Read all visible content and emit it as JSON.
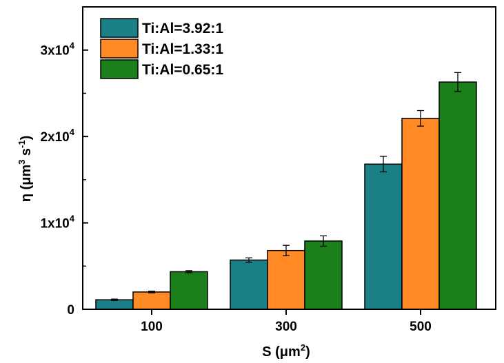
{
  "chart_data": {
    "type": "bar",
    "categories": [
      "100",
      "300",
      "500"
    ],
    "series": [
      {
        "name": "Ti:Al=3.92:1",
        "color": "#1a7f86",
        "values": [
          1100,
          5700,
          16800
        ],
        "errors": [
          80,
          250,
          900
        ]
      },
      {
        "name": "Ti:Al=1.33:1",
        "color": "#ff8a26",
        "values": [
          2000,
          6800,
          22100
        ],
        "errors": [
          100,
          600,
          900
        ]
      },
      {
        "name": "Ti:Al=0.65:1",
        "color": "#1b7f1b",
        "values": [
          4350,
          7900,
          26300
        ],
        "errors": [
          120,
          600,
          1100
        ]
      }
    ],
    "ylim": [
      0,
      35000
    ],
    "yticks": [
      {
        "value": 0,
        "mantissa": "0",
        "exp": ""
      },
      {
        "value": 10000,
        "mantissa": "1x10",
        "exp": "4"
      },
      {
        "value": 20000,
        "mantissa": "2x10",
        "exp": "4"
      },
      {
        "value": 30000,
        "mantissa": "3x10",
        "exp": "4"
      }
    ],
    "ylabel": {
      "main": "η (μm",
      "sup1": "3",
      "mid": " s",
      "sup2": "-1",
      "end": ")"
    },
    "xlabel": {
      "main": "S (μm",
      "sup": "2",
      "end": ")"
    },
    "legend_position": "top-left",
    "grid": false
  }
}
